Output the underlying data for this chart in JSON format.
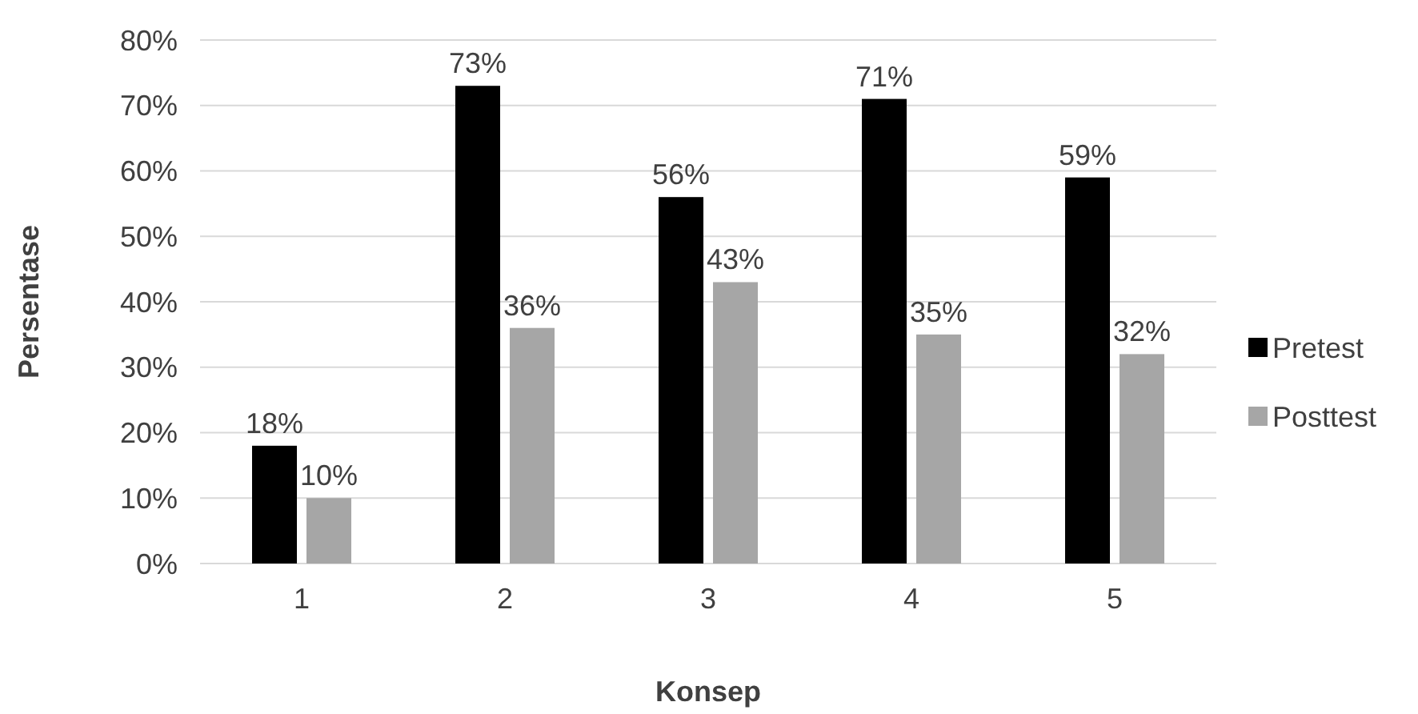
{
  "chart_data": {
    "type": "bar",
    "xlabel": "Konsep",
    "ylabel": "Persentase",
    "categories": [
      "1",
      "2",
      "3",
      "4",
      "5"
    ],
    "series": [
      {
        "name": "Pretest",
        "color": "#000000",
        "values": [
          18,
          73,
          56,
          71,
          59
        ],
        "value_labels": [
          "18%",
          "73%",
          "56%",
          "71%",
          "59%"
        ]
      },
      {
        "name": "Posttest",
        "color": "#a6a6a6",
        "values": [
          10,
          36,
          43,
          35,
          32
        ],
        "value_labels": [
          "10%",
          "36%",
          "43%",
          "35%",
          "32%"
        ]
      }
    ],
    "ylim": [
      0,
      80
    ],
    "yticks": [
      {
        "value": 0,
        "label": "0%"
      },
      {
        "value": 10,
        "label": "10%"
      },
      {
        "value": 20,
        "label": "20%"
      },
      {
        "value": 30,
        "label": "30%"
      },
      {
        "value": 40,
        "label": "40%"
      },
      {
        "value": 50,
        "label": "50%"
      },
      {
        "value": 60,
        "label": "60%"
      },
      {
        "value": 70,
        "label": "70%"
      },
      {
        "value": 80,
        "label": "80%"
      }
    ],
    "grid": "y",
    "legend": "right"
  }
}
